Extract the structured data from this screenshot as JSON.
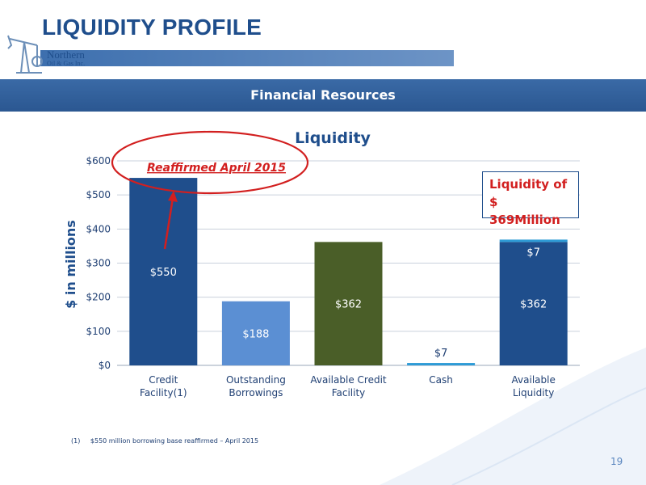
{
  "header": {
    "title": "LIQUIDITY PROFILE",
    "logo_line1": "Northern",
    "logo_line2": "Oil & Gas Inc."
  },
  "banner": {
    "text": "Financial Resources"
  },
  "chart_data": {
    "type": "bar",
    "title": "Liquidity",
    "ylabel": "$ in millions",
    "xlabel": "",
    "ylim": [
      0,
      600
    ],
    "yticks": [
      "$0",
      "$100",
      "$200",
      "$300",
      "$400",
      "$500",
      "$600"
    ],
    "grid": true,
    "categories": [
      "Credit Facility(1)",
      "Outstanding Borrowings",
      "Available Credit Facility",
      "Cash",
      "Available Liquidity"
    ],
    "bars": [
      {
        "category": "Credit Facility(1)",
        "segments": [
          {
            "value": 550,
            "label": "$550",
            "color": "#1f4e8c"
          }
        ]
      },
      {
        "category": "Outstanding Borrowings",
        "segments": [
          {
            "value": 188,
            "label": "$188",
            "color": "#5b8fd3"
          }
        ]
      },
      {
        "category": "Available Credit Facility",
        "segments": [
          {
            "value": 362,
            "label": "$362",
            "color": "#4a5e28"
          }
        ]
      },
      {
        "category": "Cash",
        "segments": [
          {
            "value": 7,
            "label": "$7",
            "color": "#2e9bd6"
          }
        ]
      },
      {
        "category": "Available Liquidity",
        "segments": [
          {
            "value": 362,
            "label": "$362",
            "color": "#1f4e8c"
          },
          {
            "value": 7,
            "label": "$7",
            "color": "#2e9bd6"
          }
        ]
      }
    ],
    "annotations": {
      "reaffirmed": "Reaffirmed April 2015",
      "callout_line1": "Liquidity of",
      "callout_line2": "$ 369Million"
    }
  },
  "footnote": {
    "num": "(1)",
    "text": "$550 million borrowing base reaffirmed – April 2015"
  },
  "page_number": "19",
  "colors": {
    "accent": "#1f4e8c",
    "highlight": "#d21f1f"
  }
}
